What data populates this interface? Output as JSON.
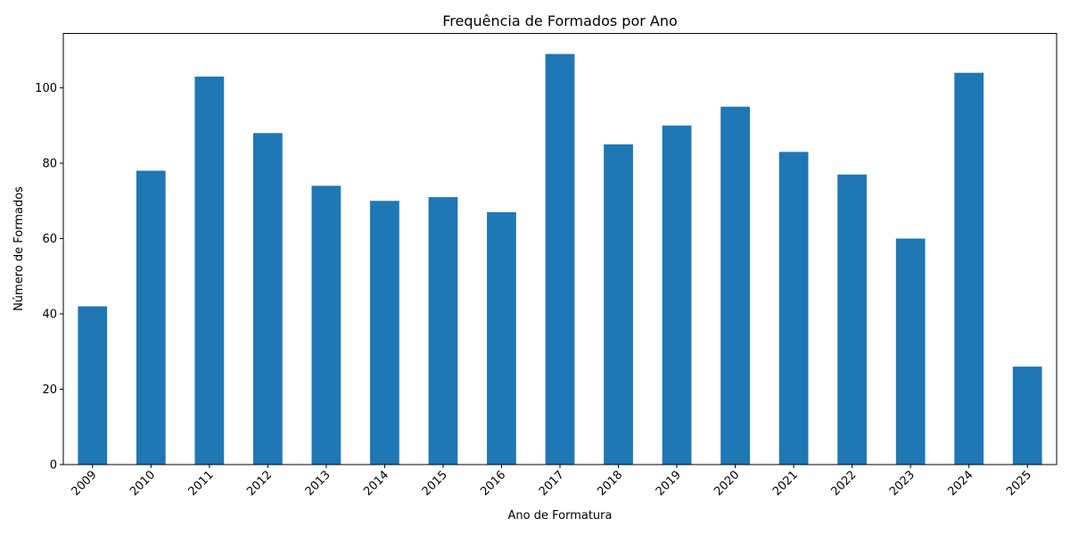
{
  "chart_data": {
    "type": "bar",
    "title": "Frequência de Formados por Ano",
    "xlabel": "Ano de Formatura",
    "ylabel": "Número de Formados",
    "categories": [
      "2009",
      "2010",
      "2011",
      "2012",
      "2013",
      "2014",
      "2015",
      "2016",
      "2017",
      "2018",
      "2019",
      "2020",
      "2021",
      "2022",
      "2023",
      "2024",
      "2025"
    ],
    "values": [
      42,
      78,
      103,
      88,
      74,
      70,
      71,
      67,
      109,
      85,
      90,
      95,
      83,
      77,
      60,
      104,
      26
    ],
    "ylim": [
      0,
      114.45
    ],
    "yticks": [
      0,
      20,
      40,
      60,
      80,
      100
    ],
    "grid": false,
    "legend": "none",
    "bar_color": "#1f77b4"
  }
}
